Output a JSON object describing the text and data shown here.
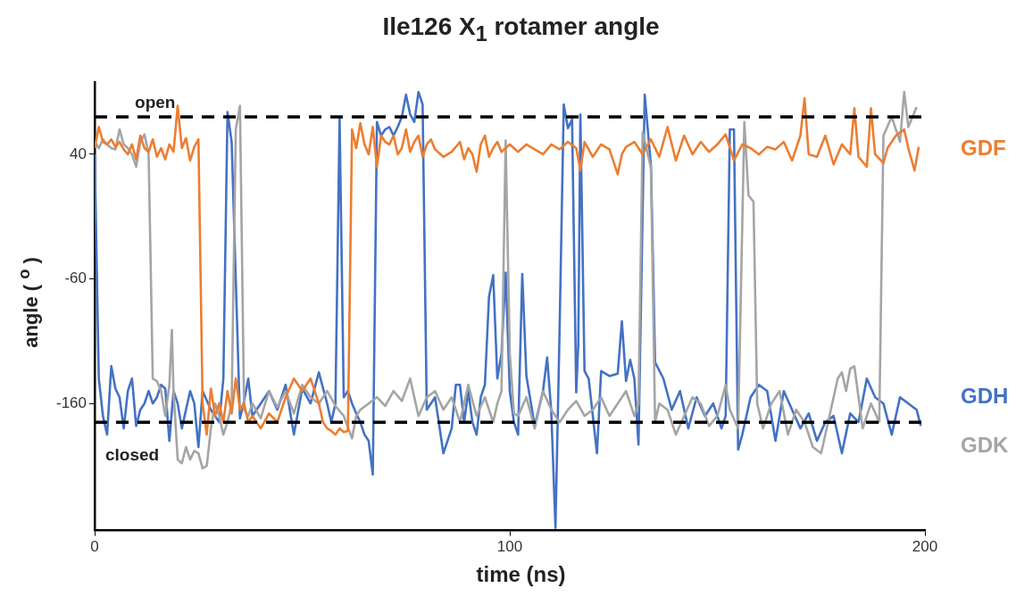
{
  "chart_data": {
    "type": "line",
    "title": "Ile126 X$_{1}$ rotamer angle",
    "xlabel": "time (ns)",
    "ylabel": "angle ( $^{o}$ )",
    "xlim": [
      0,
      200
    ],
    "xticks": [
      0,
      100,
      200
    ],
    "ylim": [
      -262,
      98
    ],
    "yticks": [
      40,
      -60,
      -160
    ],
    "grid": false,
    "legend": false,
    "marker": "none",
    "line_style": "solid",
    "ref_lines": [
      {
        "axis": "y",
        "value": 70,
        "label": "open",
        "color": "#000000",
        "line_style": "dashed"
      },
      {
        "axis": "y",
        "value": -175,
        "label": "closed",
        "color": "#000000",
        "line_style": "dashed"
      }
    ],
    "series": [
      {
        "name": "GDF",
        "color": "#ed7d31",
        "x": [
          0,
          1,
          2,
          3,
          4,
          5,
          6,
          7,
          8,
          9,
          10,
          11,
          12,
          13,
          14,
          15,
          16,
          17,
          18,
          19,
          20,
          21,
          22,
          23,
          24,
          25,
          26,
          27,
          28,
          29,
          30,
          31,
          32,
          33,
          34,
          35,
          36,
          37,
          38,
          40,
          42,
          44,
          46,
          48,
          50,
          52,
          54,
          55,
          56,
          57,
          58,
          59,
          60,
          61,
          62,
          63,
          64,
          65,
          66,
          67,
          68,
          69,
          70,
          71,
          72,
          73,
          74,
          75,
          76,
          77,
          78,
          79,
          80,
          81,
          82,
          84,
          86,
          88,
          89,
          90,
          91,
          92,
          93,
          94,
          95,
          96,
          97,
          98,
          100,
          102,
          104,
          106,
          108,
          110,
          112,
          114,
          116,
          117,
          118,
          120,
          122,
          124,
          126,
          127,
          128,
          130,
          132,
          134,
          136,
          138,
          140,
          142,
          144,
          146,
          148,
          150,
          152,
          154,
          156,
          158,
          160,
          162,
          164,
          166,
          168,
          170,
          171,
          172,
          174,
          176,
          178,
          180,
          182,
          183,
          184,
          186,
          187,
          188,
          190,
          191,
          193,
          195,
          196,
          197.5,
          198.5
        ],
        "values": [
          45,
          62,
          50,
          48,
          52,
          46,
          50,
          44,
          40,
          48,
          36,
          55,
          45,
          42,
          52,
          38,
          45,
          36,
          48,
          42,
          79,
          45,
          53,
          35,
          46,
          52,
          -160,
          -185,
          -148,
          -170,
          -160,
          -175,
          -150,
          -168,
          -140,
          -165,
          -160,
          -175,
          -170,
          -180,
          -168,
          -175,
          -155,
          -140,
          -150,
          -140,
          -160,
          -175,
          -180,
          -182,
          -185,
          -180,
          -183,
          -182,
          60,
          45,
          65,
          48,
          40,
          62,
          30,
          55,
          50,
          48,
          55,
          40,
          45,
          60,
          42,
          50,
          55,
          38,
          48,
          52,
          44,
          38,
          42,
          50,
          36,
          45,
          40,
          26,
          48,
          55,
          38,
          45,
          50,
          42,
          48,
          42,
          48,
          44,
          40,
          48,
          44,
          50,
          45,
          27,
          50,
          38,
          48,
          44,
          24,
          40,
          46,
          50,
          40,
          52,
          38,
          62,
          35,
          55,
          40,
          50,
          42,
          48,
          56,
          35,
          48,
          45,
          40,
          46,
          44,
          50,
          35,
          55,
          85,
          40,
          38,
          55,
          32,
          48,
          40,
          77,
          38,
          30,
          77,
          40,
          33,
          45,
          55,
          60,
          45,
          27,
          46
        ]
      },
      {
        "name": "GDK",
        "color": "#a5a5a5",
        "x": [
          0,
          1,
          2,
          3,
          4,
          5,
          6,
          7,
          8,
          9,
          10,
          11,
          12,
          13,
          14,
          15,
          16,
          17,
          18,
          18.6,
          19,
          20,
          21,
          22,
          23,
          24,
          25,
          26,
          27,
          28,
          29,
          30,
          31,
          32,
          33,
          34,
          35,
          36,
          37,
          38,
          40,
          42,
          44,
          46,
          48,
          50,
          52,
          54,
          56,
          58,
          60,
          62,
          63,
          64,
          66,
          68,
          70,
          72,
          74,
          76,
          78,
          80,
          82,
          84,
          86,
          88,
          90,
          92,
          94,
          96,
          97,
          98,
          99,
          100,
          101,
          102,
          104,
          106,
          108,
          110,
          112,
          114,
          116,
          118,
          120,
          122,
          124,
          126,
          128,
          130,
          131,
          132,
          134,
          135,
          136,
          138,
          140,
          142,
          144,
          146,
          148,
          150,
          152,
          153,
          155,
          156.5,
          157.5,
          158.7,
          159.6,
          161,
          163,
          165,
          167,
          169,
          171,
          173,
          175,
          177,
          179,
          180,
          181,
          182,
          183,
          185,
          187,
          189,
          190,
          192,
          194,
          195,
          196,
          198
        ],
        "values": [
          50,
          45,
          52,
          48,
          45,
          44,
          60,
          48,
          45,
          40,
          30,
          50,
          56,
          40,
          -140,
          -142,
          -150,
          -170,
          -145,
          -101,
          -150,
          -205,
          -208,
          -195,
          -205,
          -198,
          -200,
          -212,
          -210,
          -180,
          -160,
          -170,
          -185,
          -175,
          -160,
          60,
          79,
          -165,
          -170,
          -160,
          -172,
          -150,
          -163,
          -150,
          -168,
          -145,
          -155,
          -160,
          -150,
          -162,
          -170,
          -188,
          -170,
          -165,
          -160,
          -155,
          -162,
          -150,
          -158,
          -140,
          -170,
          -155,
          -150,
          -165,
          -155,
          -175,
          -145,
          -170,
          -155,
          -175,
          -160,
          -150,
          51,
          -120,
          -168,
          -170,
          -155,
          -180,
          -150,
          -165,
          -175,
          -165,
          -158,
          -170,
          -165,
          -155,
          -170,
          -160,
          -150,
          -170,
          -160,
          58,
          29,
          -175,
          -160,
          -165,
          -185,
          -170,
          -155,
          -160,
          -178,
          -170,
          -145,
          -165,
          -180,
          66,
          7,
          2,
          -160,
          -180,
          -160,
          -150,
          -185,
          -165,
          -175,
          -195,
          -200,
          -170,
          -140,
          -135,
          -150,
          -132,
          -130,
          -180,
          -160,
          -175,
          55,
          70,
          50,
          90,
          62,
          78
        ]
      },
      {
        "name": "GDH",
        "color": "#4472c4",
        "x": [
          0,
          1,
          2,
          3,
          4,
          5,
          6,
          7,
          8,
          9,
          10,
          11,
          12,
          13,
          14,
          15,
          16,
          17,
          18,
          19,
          20,
          21,
          22,
          23,
          24,
          25,
          26,
          28,
          30,
          31,
          32,
          33,
          35,
          36,
          37,
          38,
          40,
          42,
          44,
          46,
          48,
          50,
          52,
          54,
          56,
          57,
          58,
          59,
          60,
          61,
          62,
          63,
          64,
          65,
          66,
          67,
          68,
          69,
          70,
          71,
          72,
          73,
          74,
          75,
          76,
          77,
          78,
          79,
          80,
          82,
          84,
          86,
          87,
          88,
          89,
          90,
          91,
          92,
          93,
          94,
          95,
          96,
          97,
          98,
          99,
          100,
          101,
          102,
          103,
          104,
          106,
          108,
          109,
          110,
          111,
          112,
          113,
          114,
          115,
          116,
          116.5,
          117,
          118,
          119,
          121,
          122,
          124,
          126,
          127,
          128,
          129,
          130,
          131,
          132.5,
          134,
          135,
          137,
          139,
          141,
          143,
          145,
          147,
          149,
          151,
          152,
          153,
          154,
          155,
          156,
          158,
          160,
          162,
          164,
          166,
          168,
          170,
          172,
          174,
          176,
          178,
          180,
          182,
          184,
          186,
          188,
          190,
          192,
          194,
          196,
          198,
          199
        ],
        "values": [
          40,
          -140,
          -170,
          -185,
          -130,
          -148,
          -155,
          -180,
          -150,
          -140,
          -178,
          -165,
          -160,
          -150,
          -160,
          -155,
          -145,
          -148,
          -190,
          -150,
          -160,
          -180,
          -165,
          -150,
          -160,
          -195,
          -150,
          -165,
          -175,
          -140,
          74,
          50,
          -172,
          -158,
          -140,
          -170,
          -160,
          -150,
          -165,
          -145,
          -185,
          -148,
          -160,
          -135,
          -160,
          -175,
          -160,
          69,
          -155,
          -150,
          -160,
          -168,
          -175,
          -185,
          -190,
          -217,
          66,
          55,
          60,
          62,
          55,
          62,
          70,
          88,
          72,
          66,
          90,
          80,
          -165,
          -155,
          -200,
          -180,
          -145,
          -145,
          -175,
          -150,
          -175,
          -185,
          -155,
          -145,
          -74,
          -57,
          -140,
          -120,
          -55,
          -150,
          -175,
          -185,
          -56,
          -138,
          -178,
          -150,
          -123,
          -167,
          -260,
          -100,
          80,
          61,
          68,
          -151,
          -112,
          72,
          -134,
          -140,
          -200,
          -134,
          -138,
          -136,
          -94,
          -142,
          -125,
          -140,
          -193,
          88,
          31,
          -127,
          -140,
          -165,
          -150,
          -180,
          -155,
          -170,
          -160,
          -180,
          -170,
          60,
          60,
          -197,
          -185,
          -155,
          -145,
          -150,
          -190,
          -150,
          -165,
          -180,
          -168,
          -190,
          -175,
          -170,
          -200,
          -168,
          -175,
          -140,
          -155,
          -160,
          -185,
          -155,
          -160,
          -165,
          -178
        ]
      }
    ]
  }
}
